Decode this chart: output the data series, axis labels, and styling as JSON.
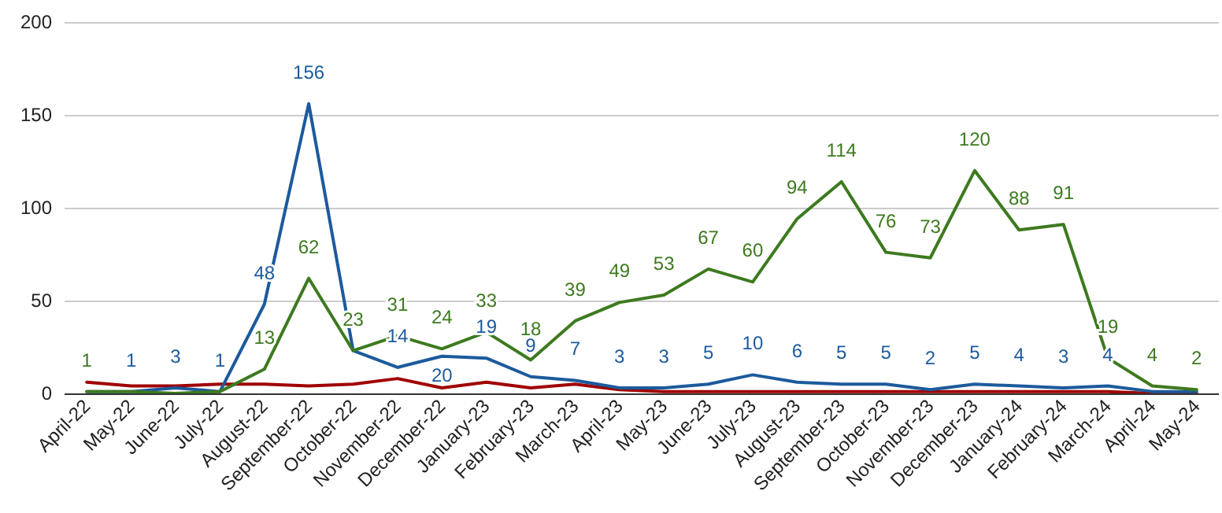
{
  "chart_data": {
    "type": "line",
    "categories": [
      "April-22",
      "May-22",
      "June-22",
      "July-22",
      "August-22",
      "September-22",
      "October-22",
      "November-22",
      "December-22",
      "January-23",
      "February-23",
      "March-23",
      "April-23",
      "May-23",
      "June-23",
      "July-23",
      "August-23",
      "September-23",
      "October-23",
      "November-23",
      "December-23",
      "January-24",
      "February-24",
      "March-24",
      "April-24",
      "May-24"
    ],
    "series": [
      {
        "color": "#a00000",
        "values": [
          6,
          4,
          4,
          5,
          5,
          4,
          5,
          8,
          3,
          6,
          3,
          5,
          2,
          1,
          1,
          1,
          1,
          1,
          1,
          1,
          1,
          1,
          1,
          1,
          0,
          0
        ]
      },
      {
        "color": "#1c5a9c",
        "values": [
          1,
          1,
          3,
          1,
          48,
          156,
          23,
          14,
          20,
          19,
          9,
          7,
          3,
          3,
          5,
          10,
          6,
          5,
          5,
          2,
          5,
          4,
          3,
          4,
          1,
          1
        ],
        "value_labels": [
          null,
          "1",
          "3",
          "1",
          "48",
          "156",
          null,
          "14",
          "20",
          "19",
          "9",
          "7",
          "3",
          "3",
          "5",
          "10",
          "6",
          "5",
          "5",
          "2",
          "5",
          "4",
          "3",
          "4",
          null,
          null
        ]
      },
      {
        "color": "#3d7a1f",
        "values": [
          1,
          1,
          0,
          1,
          13,
          62,
          23,
          31,
          24,
          33,
          18,
          39,
          49,
          53,
          67,
          60,
          94,
          114,
          76,
          73,
          120,
          88,
          91,
          19,
          4,
          2
        ],
        "value_labels": [
          "1",
          null,
          null,
          null,
          "13",
          "62",
          "23",
          "31",
          "24",
          "33",
          "18",
          "39",
          "49",
          "53",
          "67",
          "60",
          "94",
          "114",
          "76",
          "73",
          "120",
          "88",
          "91",
          "19",
          "4",
          "2"
        ]
      }
    ],
    "ylim": [
      0,
      200
    ],
    "yticks": [
      0,
      50,
      100,
      150,
      200
    ],
    "grid": "y",
    "marker": "none",
    "line_style": "solid"
  }
}
